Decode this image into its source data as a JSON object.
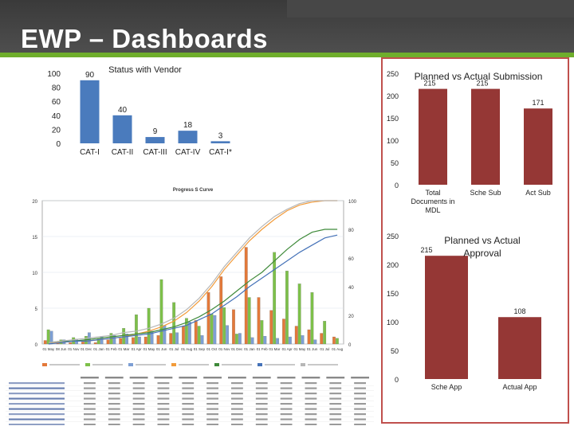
{
  "header": {
    "title": "EWP – Dashboards"
  },
  "colors": {
    "bar_blue": "#4a7bbd",
    "bar_red": "#953735",
    "header_bg": "#474747",
    "accent_green": "#6fae2c",
    "frame_red": "#c0504d"
  },
  "chart_data": [
    {
      "id": "vendor",
      "type": "bar",
      "title": "Status with Vendor",
      "categories": [
        "CAT-I",
        "CAT-II",
        "CAT-III",
        "CAT-IV",
        "CAT-I*"
      ],
      "values": [
        90,
        40,
        9,
        18,
        3
      ],
      "value_labels": [
        "90",
        "40",
        "9",
        "18",
        "3"
      ],
      "ylim": [
        0,
        100
      ],
      "yticks": [
        "0",
        "20",
        "40",
        "60",
        "80",
        "100"
      ],
      "grid": false
    },
    {
      "id": "submission",
      "type": "bar",
      "title": "Planned vs Actual Submission",
      "categories": [
        "Total Documents in MDL",
        "Sche Sub",
        "Act Sub"
      ],
      "values": [
        215,
        215,
        171
      ],
      "value_labels": [
        "215",
        "215",
        "171"
      ],
      "ylim": [
        0,
        250
      ],
      "yticks": [
        "0",
        "50",
        "100",
        "150",
        "200",
        "250"
      ],
      "grid": false
    },
    {
      "id": "approval",
      "type": "bar",
      "title": "Planned vs Actual Approval",
      "categories": [
        "Sche App",
        "Actual App"
      ],
      "values": [
        215,
        108
      ],
      "value_labels": [
        "215",
        "108"
      ],
      "ylim": [
        0,
        250
      ],
      "yticks": [
        "0",
        "50",
        "100",
        "150",
        "200",
        "250"
      ],
      "grid": false
    },
    {
      "id": "scurve",
      "type": "bar",
      "title": "Progress S Curve",
      "ylim": [
        0,
        20
      ],
      "y2lim": [
        0,
        100
      ],
      "yticks": [
        "0",
        "5",
        "10",
        "15",
        "20"
      ],
      "y2ticks": [
        "0",
        "20",
        "40",
        "60",
        "80",
        "100"
      ],
      "categories": [
        "01 May",
        "08 Jun",
        "01 Nov",
        "01 Dec",
        "01 Jan",
        "01 Feb",
        "01 Mar",
        "01 Apr",
        "01 May",
        "01 Jun",
        "01 Jul",
        "01 Aug",
        "01 Sep",
        "01 Oct",
        "01 Nov",
        "01 Dec",
        "01 Jan",
        "01 Feb",
        "01 Mar",
        "01 Apr",
        "01 May",
        "01 Jun",
        "01 Jul",
        "01 Aug"
      ],
      "series": [
        {
          "kind": "bar",
          "color": "#e3793a",
          "values": [
            0.5,
            0.2,
            0.2,
            0.3,
            0.2,
            0.6,
            0.8,
            0.9,
            1.0,
            1.2,
            1.5,
            2.5,
            3.3,
            7.2,
            9.4,
            4.8,
            13.5,
            6.5,
            4.7,
            3.5,
            2.5,
            2.0,
            1.5,
            1.0
          ]
        },
        {
          "kind": "bar",
          "color": "#7dc04a",
          "values": [
            2.0,
            0.6,
            0.9,
            1.1,
            0.7,
            1.5,
            2.2,
            4.1,
            5.0,
            9.0,
            5.8,
            3.6,
            2.5,
            4.2,
            5.1,
            1.4,
            6.5,
            3.3,
            12.8,
            10.2,
            8.4,
            7.2,
            3.2,
            0.8
          ]
        },
        {
          "kind": "bar",
          "color": "#7d9fd4",
          "values": [
            1.8,
            0.6,
            0.7,
            1.6,
            1.1,
            1.2,
            1.4,
            1.0,
            1.8,
            2.6,
            1.6,
            3.1,
            1.2,
            4.0,
            2.6,
            1.5,
            0.9,
            1.1,
            0.8,
            1.0,
            1.2,
            0.6,
            0,
            0
          ]
        },
        {
          "kind": "line",
          "color": "#f29b3a",
          "y2values": [
            1,
            1,
            2,
            2,
            3,
            4,
            5,
            7,
            9,
            12,
            16,
            22,
            30,
            40,
            52,
            62,
            72,
            80,
            87,
            93,
            97,
            99,
            100,
            100
          ]
        },
        {
          "kind": "line",
          "color": "#3f8a3a",
          "y2values": [
            1,
            2,
            2,
            3,
            4,
            5,
            6,
            7,
            8,
            10,
            12,
            15,
            19,
            24,
            30,
            37,
            44,
            50,
            58,
            66,
            73,
            78,
            80,
            80
          ]
        },
        {
          "kind": "line",
          "color": "#4572b8",
          "y2values": [
            0,
            1,
            2,
            2,
            3,
            4,
            5,
            6,
            7,
            9,
            11,
            13,
            17,
            21,
            27,
            33,
            40,
            46,
            52,
            58,
            64,
            69,
            74,
            76
          ]
        },
        {
          "kind": "line",
          "color": "#b7b7b7",
          "y2values": [
            1,
            2,
            3,
            4,
            5,
            6,
            8,
            9,
            11,
            14,
            18,
            24,
            32,
            42,
            54,
            64,
            74,
            82,
            89,
            94,
            98,
            100,
            100,
            100
          ]
        }
      ]
    }
  ]
}
